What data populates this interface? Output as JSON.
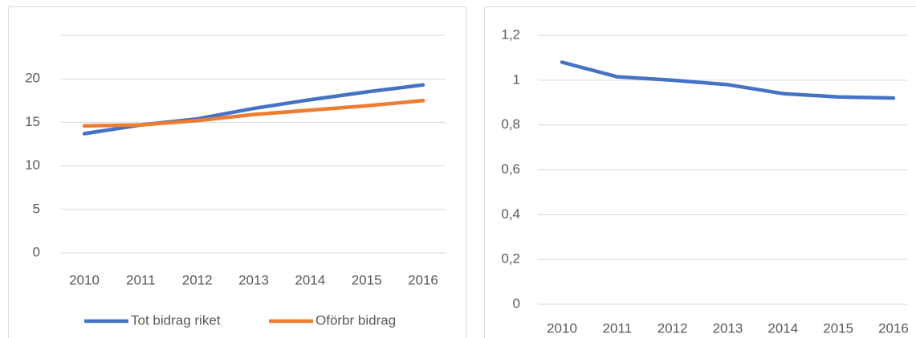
{
  "chart_data": [
    {
      "type": "line",
      "categories": [
        "2010",
        "2011",
        "2012",
        "2013",
        "2014",
        "2015",
        "2016"
      ],
      "series": [
        {
          "name": "Tot bidrag riket",
          "color": "#4472c4",
          "values": [
            13.7,
            14.7,
            15.4,
            16.6,
            17.6,
            18.5,
            19.3
          ]
        },
        {
          "name": "Oförbr bidrag",
          "color": "#ed7d31",
          "values": [
            14.6,
            14.7,
            15.2,
            15.9,
            16.4,
            16.9,
            17.5
          ]
        }
      ],
      "ylim": [
        0,
        25
      ],
      "yticks": [
        0,
        5,
        10,
        15,
        20
      ],
      "grid": true,
      "legend": "bottom"
    },
    {
      "type": "line",
      "categories": [
        "2010",
        "2011",
        "2012",
        "2013",
        "2014",
        "2015",
        "2016"
      ],
      "series": [
        {
          "color": "#4472c4",
          "values": [
            1.08,
            1.015,
            1.0,
            0.98,
            0.94,
            0.925,
            0.92
          ]
        }
      ],
      "ylim": [
        0,
        1.2
      ],
      "yticks": [
        0,
        {
          "value": 0.2,
          "label": "0,2"
        },
        {
          "value": 0.4,
          "label": "0,4"
        },
        {
          "value": 0.6,
          "label": "0,6"
        },
        {
          "value": 0.8,
          "label": "0,8"
        },
        1,
        {
          "value": 1.2,
          "label": "1,2"
        }
      ],
      "grid": true
    }
  ]
}
